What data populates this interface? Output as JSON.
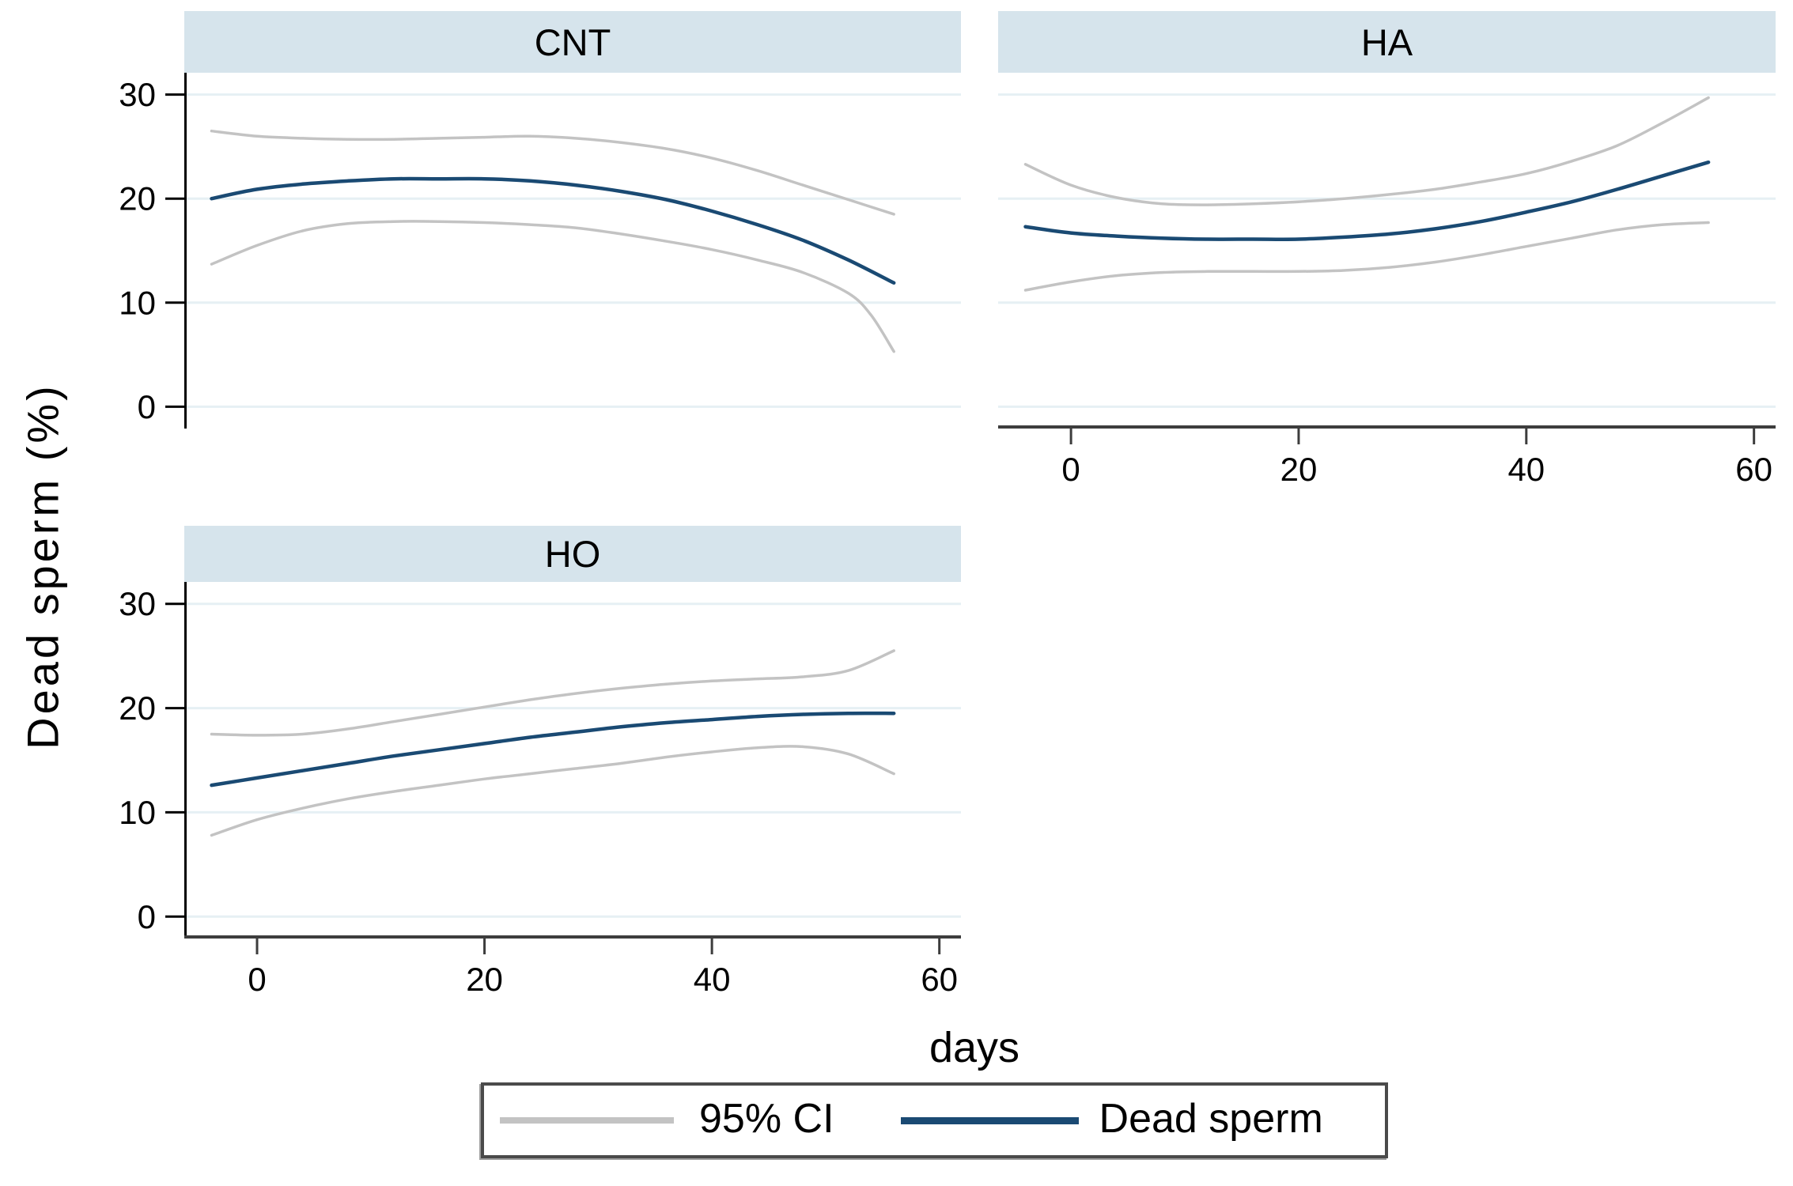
{
  "figure": {
    "y_axis_title": "Dead sperm (%)",
    "x_axis_title": "days"
  },
  "colors": {
    "ci_gray": "#c3c3c3",
    "dead_sperm_navy": "#1a4a73",
    "strip_bg": "#d6e4ec",
    "gridline": "#e6f0f4",
    "left_axis": "#000000",
    "bottom_axis": "#3d3d3d",
    "tick_label": "#000000"
  },
  "legend": {
    "items": [
      {
        "label": "95% CI",
        "color": "#c3c3c3",
        "thickness": 8
      },
      {
        "label": "Dead sperm",
        "color": "#1a4a73",
        "thickness": 9
      }
    ]
  },
  "chart_data": [
    {
      "type": "line",
      "title": "CNT",
      "xlabel": "days",
      "ylabel": "Dead sperm (%)",
      "xlim": [
        -6.4,
        61.9
      ],
      "ylim": [
        -2.1,
        32.1
      ],
      "xticks": [
        0,
        20,
        40,
        60
      ],
      "yticks": [
        0,
        10,
        20,
        30
      ],
      "show_x_axis": false,
      "show_y_axis": true,
      "grid": true,
      "series": [
        {
          "name": "95% CI upper",
          "color": "#c3c3c3",
          "width": 3.5,
          "points": [
            [
              -4,
              26.5
            ],
            [
              0,
              26.0
            ],
            [
              4,
              25.8
            ],
            [
              8,
              25.7
            ],
            [
              12,
              25.7
            ],
            [
              16,
              25.8
            ],
            [
              20,
              25.9
            ],
            [
              24,
              26.0
            ],
            [
              28,
              25.8
            ],
            [
              32,
              25.4
            ],
            [
              36,
              24.8
            ],
            [
              40,
              23.9
            ],
            [
              44,
              22.7
            ],
            [
              48,
              21.3
            ],
            [
              52,
              19.9
            ],
            [
              56,
              18.5
            ]
          ]
        },
        {
          "name": "Dead sperm",
          "color": "#1a4a73",
          "width": 4.5,
          "points": [
            [
              -4,
              20.0
            ],
            [
              0,
              20.9
            ],
            [
              4,
              21.4
            ],
            [
              8,
              21.7
            ],
            [
              12,
              21.9
            ],
            [
              16,
              21.9
            ],
            [
              20,
              21.9
            ],
            [
              24,
              21.7
            ],
            [
              28,
              21.3
            ],
            [
              32,
              20.7
            ],
            [
              36,
              19.9
            ],
            [
              40,
              18.8
            ],
            [
              44,
              17.5
            ],
            [
              48,
              16.0
            ],
            [
              52,
              14.1
            ],
            [
              56,
              11.9
            ]
          ]
        },
        {
          "name": "95% CI lower",
          "color": "#c3c3c3",
          "width": 3.5,
          "points": [
            [
              -4,
              13.7
            ],
            [
              0,
              15.5
            ],
            [
              4,
              16.9
            ],
            [
              8,
              17.6
            ],
            [
              12,
              17.8
            ],
            [
              16,
              17.8
            ],
            [
              20,
              17.7
            ],
            [
              24,
              17.5
            ],
            [
              28,
              17.2
            ],
            [
              32,
              16.6
            ],
            [
              36,
              15.9
            ],
            [
              40,
              15.1
            ],
            [
              44,
              14.1
            ],
            [
              48,
              12.9
            ],
            [
              52,
              10.9
            ],
            [
              54,
              8.8
            ],
            [
              56,
              5.3
            ]
          ]
        }
      ]
    },
    {
      "type": "line",
      "title": "HA",
      "xlabel": "days",
      "ylabel": "Dead sperm (%)",
      "xlim": [
        -6.4,
        61.9
      ],
      "ylim": [
        -2.1,
        32.1
      ],
      "xticks": [
        0,
        20,
        40,
        60
      ],
      "yticks": [
        0,
        10,
        20,
        30
      ],
      "show_x_axis": true,
      "show_y_axis": false,
      "grid": true,
      "series": [
        {
          "name": "95% CI upper",
          "color": "#c3c3c3",
          "width": 3.5,
          "points": [
            [
              -4,
              23.3
            ],
            [
              0,
              21.3
            ],
            [
              4,
              20.1
            ],
            [
              8,
              19.5
            ],
            [
              12,
              19.4
            ],
            [
              16,
              19.5
            ],
            [
              20,
              19.7
            ],
            [
              24,
              20.0
            ],
            [
              28,
              20.4
            ],
            [
              32,
              20.9
            ],
            [
              36,
              21.6
            ],
            [
              40,
              22.4
            ],
            [
              44,
              23.6
            ],
            [
              48,
              25.1
            ],
            [
              52,
              27.3
            ],
            [
              56,
              29.7
            ]
          ]
        },
        {
          "name": "Dead sperm",
          "color": "#1a4a73",
          "width": 4.5,
          "points": [
            [
              -4,
              17.3
            ],
            [
              0,
              16.7
            ],
            [
              4,
              16.4
            ],
            [
              8,
              16.2
            ],
            [
              12,
              16.1
            ],
            [
              16,
              16.1
            ],
            [
              20,
              16.1
            ],
            [
              24,
              16.3
            ],
            [
              28,
              16.6
            ],
            [
              32,
              17.1
            ],
            [
              36,
              17.8
            ],
            [
              40,
              18.7
            ],
            [
              44,
              19.7
            ],
            [
              48,
              20.9
            ],
            [
              52,
              22.2
            ],
            [
              56,
              23.5
            ]
          ]
        },
        {
          "name": "95% CI lower",
          "color": "#c3c3c3",
          "width": 3.5,
          "points": [
            [
              -4,
              11.2
            ],
            [
              0,
              12.0
            ],
            [
              4,
              12.6
            ],
            [
              8,
              12.9
            ],
            [
              12,
              13.0
            ],
            [
              16,
              13.0
            ],
            [
              20,
              13.0
            ],
            [
              24,
              13.1
            ],
            [
              28,
              13.4
            ],
            [
              32,
              13.9
            ],
            [
              36,
              14.6
            ],
            [
              40,
              15.4
            ],
            [
              44,
              16.2
            ],
            [
              48,
              17.0
            ],
            [
              52,
              17.5
            ],
            [
              56,
              17.7
            ]
          ]
        }
      ]
    },
    {
      "type": "line",
      "title": "HO",
      "xlabel": "days",
      "ylabel": "Dead sperm (%)",
      "xlim": [
        -6.4,
        61.9
      ],
      "ylim": [
        -2.1,
        32.1
      ],
      "xticks": [
        0,
        20,
        40,
        60
      ],
      "yticks": [
        0,
        10,
        20,
        30
      ],
      "show_x_axis": true,
      "show_y_axis": true,
      "grid": true,
      "series": [
        {
          "name": "95% CI upper",
          "color": "#c3c3c3",
          "width": 3.5,
          "points": [
            [
              -4,
              17.5
            ],
            [
              0,
              17.4
            ],
            [
              4,
              17.5
            ],
            [
              8,
              18.0
            ],
            [
              12,
              18.7
            ],
            [
              16,
              19.4
            ],
            [
              20,
              20.1
            ],
            [
              24,
              20.8
            ],
            [
              28,
              21.4
            ],
            [
              32,
              21.9
            ],
            [
              36,
              22.3
            ],
            [
              40,
              22.6
            ],
            [
              44,
              22.8
            ],
            [
              48,
              23.0
            ],
            [
              52,
              23.6
            ],
            [
              56,
              25.5
            ]
          ]
        },
        {
          "name": "Dead sperm",
          "color": "#1a4a73",
          "width": 4.5,
          "points": [
            [
              -4,
              12.6
            ],
            [
              0,
              13.3
            ],
            [
              4,
              14.0
            ],
            [
              8,
              14.7
            ],
            [
              12,
              15.4
            ],
            [
              16,
              16.0
            ],
            [
              20,
              16.6
            ],
            [
              24,
              17.2
            ],
            [
              28,
              17.7
            ],
            [
              32,
              18.2
            ],
            [
              36,
              18.6
            ],
            [
              40,
              18.9
            ],
            [
              44,
              19.2
            ],
            [
              48,
              19.4
            ],
            [
              52,
              19.5
            ],
            [
              56,
              19.5
            ]
          ]
        },
        {
          "name": "95% CI lower",
          "color": "#c3c3c3",
          "width": 3.5,
          "points": [
            [
              -4,
              7.8
            ],
            [
              0,
              9.3
            ],
            [
              4,
              10.4
            ],
            [
              8,
              11.3
            ],
            [
              12,
              12.0
            ],
            [
              16,
              12.6
            ],
            [
              20,
              13.2
            ],
            [
              24,
              13.7
            ],
            [
              28,
              14.2
            ],
            [
              32,
              14.7
            ],
            [
              36,
              15.3
            ],
            [
              40,
              15.8
            ],
            [
              44,
              16.2
            ],
            [
              48,
              16.3
            ],
            [
              52,
              15.6
            ],
            [
              56,
              13.7
            ]
          ]
        }
      ]
    }
  ]
}
